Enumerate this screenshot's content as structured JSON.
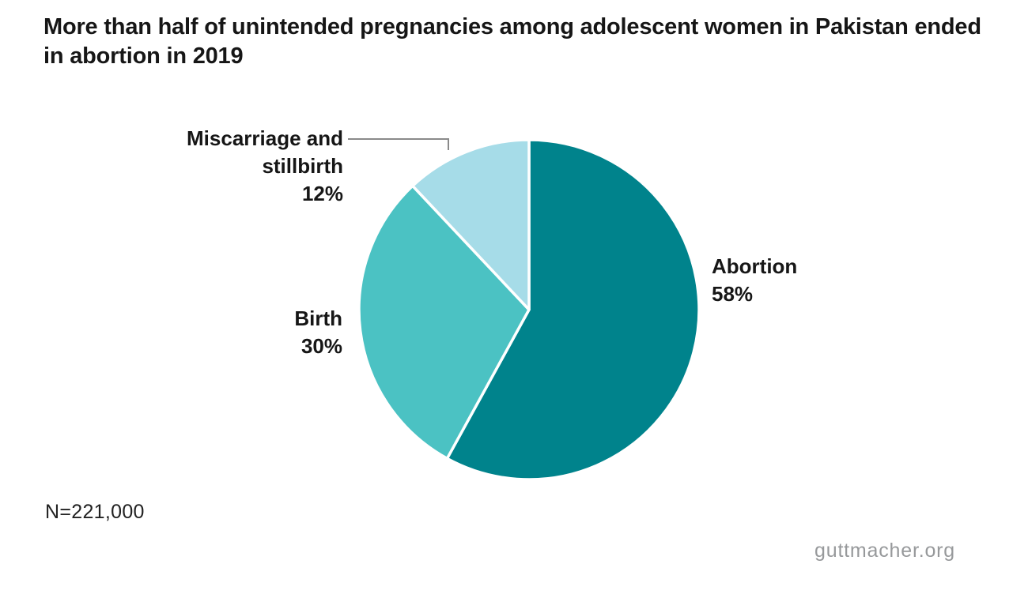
{
  "chart_data": {
    "type": "pie",
    "title": "More than half of unintended pregnancies among adolescent women in Pakistan ended in abortion in 2019",
    "start_angle_deg": 0,
    "direction": "clockwise",
    "slices": [
      {
        "label": "Abortion",
        "value": 58,
        "pct": "58%",
        "color": "#00838C"
      },
      {
        "label": "Birth",
        "value": 30,
        "pct": "30%",
        "color": "#4BC2C3"
      },
      {
        "label": "Miscarriage and stillbirth",
        "value": 12,
        "pct": "12%",
        "color": "#A6DCE8"
      }
    ],
    "separator_color": "#FFFFFF",
    "leader_line_color": "#8A8A8A",
    "sample_size": "N=221,000",
    "source": "guttmacher.org",
    "legend": "none",
    "labels_position": "outside"
  }
}
